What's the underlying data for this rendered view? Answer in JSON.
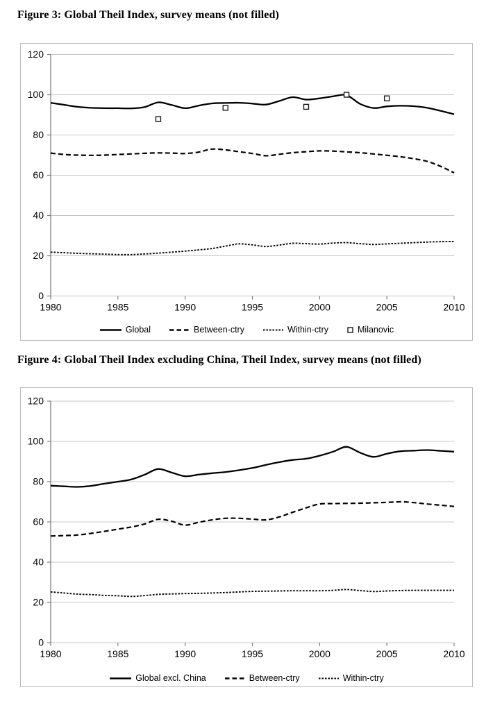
{
  "figures": [
    {
      "title": "Figure 3: Global Theil Index, survey means (not filled)"
    },
    {
      "title": "Figure 4: Global Theil Index excluding China, Theil Index, survey means (not filled)"
    }
  ],
  "colors": {
    "line": "#000000",
    "grid": "#c9c9c9",
    "axis": "#7f7f7f",
    "border": "#bdbdbd",
    "marker_fill": "#ffffff"
  },
  "chart_data": [
    {
      "type": "line",
      "title": "Figure 3: Global Theil Index, survey means (not filled)",
      "xlabel": "",
      "ylabel": "",
      "ylim": [
        0,
        120
      ],
      "y_ticks": [
        0,
        20,
        40,
        60,
        80,
        100,
        120
      ],
      "x_ticks": [
        1980,
        1985,
        1990,
        1995,
        2000,
        2005,
        2010
      ],
      "grid": true,
      "legend_position": "bottom",
      "x": [
        1980,
        1981,
        1982,
        1983,
        1984,
        1985,
        1986,
        1987,
        1988,
        1989,
        1990,
        1991,
        1992,
        1993,
        1994,
        1995,
        1996,
        1997,
        1998,
        1999,
        2000,
        2001,
        2002,
        2003,
        2004,
        2005,
        2006,
        2007,
        2008,
        2009,
        2010
      ],
      "series": [
        {
          "name": "Global",
          "style": "solid",
          "values": [
            96.0,
            95.0,
            94.0,
            93.5,
            93.3,
            93.3,
            93.2,
            93.9,
            96.2,
            94.9,
            93.3,
            94.6,
            95.7,
            95.9,
            96.0,
            95.6,
            95.1,
            96.9,
            98.8,
            97.6,
            98.2,
            99.2,
            99.8,
            95.5,
            93.4,
            94.2,
            94.5,
            94.3,
            93.5,
            92.0,
            90.3
          ]
        },
        {
          "name": "Between-ctry",
          "style": "dashed",
          "values": [
            71.0,
            70.3,
            70.0,
            69.9,
            70.0,
            70.3,
            70.6,
            70.9,
            71.1,
            71.0,
            70.8,
            71.5,
            73.0,
            72.6,
            71.7,
            70.8,
            69.7,
            70.4,
            71.2,
            71.7,
            72.1,
            72.0,
            71.6,
            71.2,
            70.6,
            69.9,
            69.2,
            68.2,
            66.9,
            64.4,
            61.2
          ]
        },
        {
          "name": "Within-ctry",
          "style": "dotted",
          "values": [
            21.8,
            21.5,
            21.2,
            21.0,
            20.8,
            20.6,
            20.6,
            20.9,
            21.3,
            21.8,
            22.3,
            22.9,
            23.6,
            24.8,
            25.9,
            25.4,
            24.6,
            25.3,
            26.2,
            26.0,
            25.8,
            26.3,
            26.5,
            26.0,
            25.6,
            25.9,
            26.2,
            26.5,
            26.8,
            27.0,
            27.1
          ]
        },
        {
          "name": "Milanovic",
          "style": "open-square-markers",
          "points": [
            [
              1988,
              87.9
            ],
            [
              1993,
              93.5
            ],
            [
              1999,
              94.0
            ],
            [
              2002,
              100.0
            ],
            [
              2005,
              98.2
            ]
          ]
        }
      ]
    },
    {
      "type": "line",
      "title": "Figure 4: Global Theil Index excluding China, Theil Index, survey means (not filled)",
      "xlabel": "",
      "ylabel": "",
      "ylim": [
        0,
        120
      ],
      "y_ticks": [
        0,
        20,
        40,
        60,
        80,
        100,
        120
      ],
      "x_ticks": [
        1980,
        1985,
        1990,
        1995,
        2000,
        2005,
        2010
      ],
      "grid": true,
      "legend_position": "bottom",
      "x": [
        1980,
        1981,
        1982,
        1983,
        1984,
        1985,
        1986,
        1987,
        1988,
        1989,
        1990,
        1991,
        1992,
        1993,
        1994,
        1995,
        1996,
        1997,
        1998,
        1999,
        2000,
        2001,
        2002,
        2003,
        2004,
        2005,
        2006,
        2007,
        2008,
        2009,
        2010
      ],
      "series": [
        {
          "name": "Global excl. China",
          "style": "solid",
          "values": [
            78.0,
            77.7,
            77.4,
            77.9,
            79.0,
            80.0,
            81.1,
            83.5,
            86.3,
            84.5,
            82.7,
            83.5,
            84.2,
            84.8,
            85.7,
            86.8,
            88.3,
            89.7,
            90.8,
            91.4,
            92.9,
            94.9,
            97.3,
            94.4,
            92.3,
            93.9,
            95.1,
            95.4,
            95.7,
            95.3,
            94.9
          ]
        },
        {
          "name": "Between-ctry",
          "style": "dashed",
          "values": [
            53.0,
            53.2,
            53.5,
            54.3,
            55.3,
            56.4,
            57.5,
            59.0,
            61.3,
            60.3,
            58.4,
            59.8,
            61.0,
            61.8,
            61.8,
            61.4,
            61.0,
            62.5,
            64.8,
            67.0,
            68.9,
            69.1,
            69.2,
            69.3,
            69.5,
            69.7,
            70.0,
            69.6,
            68.9,
            68.3,
            67.7
          ]
        },
        {
          "name": "Within-ctry",
          "style": "dotted",
          "values": [
            25.2,
            24.7,
            24.1,
            23.9,
            23.5,
            23.3,
            23.0,
            23.4,
            24.0,
            24.2,
            24.4,
            24.5,
            24.7,
            24.9,
            25.2,
            25.5,
            25.6,
            25.7,
            25.8,
            25.8,
            25.8,
            26.0,
            26.4,
            25.9,
            25.4,
            25.7,
            25.9,
            26.0,
            26.0,
            26.0,
            26.0
          ]
        }
      ]
    }
  ]
}
